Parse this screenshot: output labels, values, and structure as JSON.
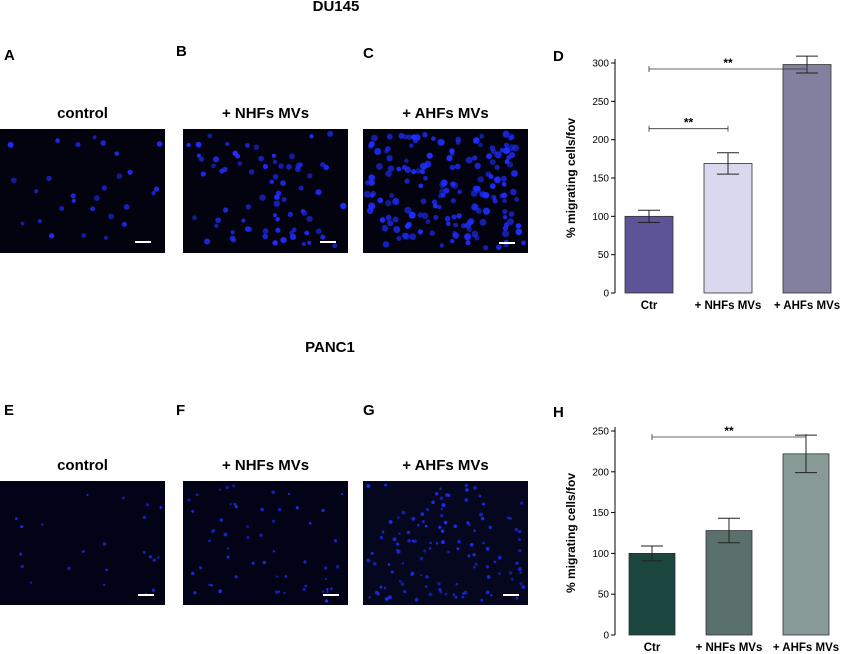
{
  "sections": [
    {
      "title": "DU145",
      "panels": [
        {
          "letter": "A",
          "label": "control"
        },
        {
          "letter": "B",
          "label": "+ NHFs MVs"
        },
        {
          "letter": "C",
          "label": "+ AHFs MVs"
        }
      ],
      "chart_letter": "D"
    },
    {
      "title": "PANC1",
      "panels": [
        {
          "letter": "E",
          "label": "control"
        },
        {
          "letter": "F",
          "label": "+ NHFs MVs"
        },
        {
          "letter": "G",
          "label": "+ AHFs MVs"
        }
      ],
      "chart_letter": "H"
    }
  ],
  "colors": {
    "du145_bars": [
      "#5c5496",
      "#d9d8ee",
      "#837f9f"
    ],
    "panc1_bars": [
      "#1c4640",
      "#5a706b",
      "#879a95"
    ],
    "cell": "#1f2dff",
    "micro_bg": "#03030f"
  },
  "chart_data": [
    {
      "type": "bar",
      "panel": "D",
      "categories": [
        "Ctr",
        "+ NHFs MVs",
        "+ AHFs MVs"
      ],
      "values": [
        100,
        169,
        298
      ],
      "errors": [
        8,
        14,
        11
      ],
      "ylabel": "% migrating cells/fov",
      "ylim": [
        0,
        300
      ],
      "yticks": [
        0,
        50,
        100,
        150,
        200,
        250,
        300
      ],
      "significance": [
        {
          "from": 0,
          "to": 1,
          "label": "**"
        },
        {
          "from": 0,
          "to": 2,
          "label": "**"
        }
      ],
      "grid": false
    },
    {
      "type": "bar",
      "panel": "H",
      "categories": [
        "Ctr",
        "+ NHFs MVs",
        "+ AHFs MVs"
      ],
      "values": [
        100,
        128,
        222
      ],
      "errors": [
        9,
        15,
        23
      ],
      "ylabel": "% migrating cells/fov",
      "ylim": [
        0,
        250
      ],
      "yticks": [
        0,
        50,
        100,
        150,
        200,
        250
      ],
      "significance": [
        {
          "from": 0,
          "to": 2,
          "label": "**"
        }
      ],
      "grid": false
    }
  ]
}
